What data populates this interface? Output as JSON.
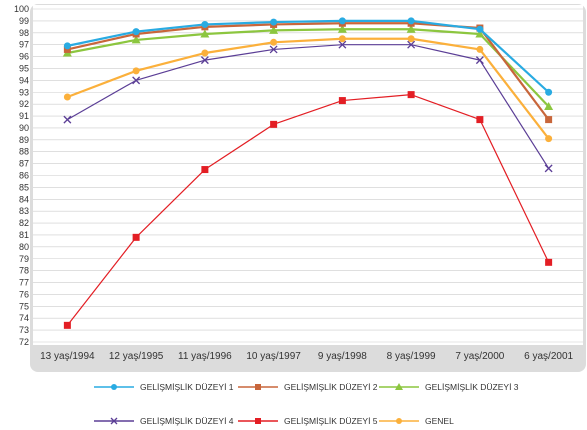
{
  "chart_data": {
    "type": "line",
    "title": "",
    "xlabel": "",
    "ylabel": "",
    "ylim": [
      72,
      100
    ],
    "y_ticks": [
      72,
      73,
      74,
      75,
      76,
      77,
      78,
      79,
      80,
      81,
      82,
      83,
      84,
      85,
      86,
      87,
      88,
      89,
      90,
      91,
      92,
      93,
      94,
      95,
      96,
      97,
      98,
      99,
      100
    ],
    "grid": "horizontal",
    "legend_position": "bottom",
    "categories": [
      "13 yaş/1994",
      "12 yaş/1995",
      "11 yaş/1996",
      "10 yaş/1997",
      "9 yaş/1998",
      "8 yaş/1999",
      "7 yaş/2000",
      "6 yaş/2001"
    ],
    "series": [
      {
        "name": "GELİŞMİŞLİK DÜZEYİ 1",
        "color": "#29abe2",
        "marker": "circle",
        "values": [
          96.9,
          98.1,
          98.7,
          98.9,
          99.0,
          99.0,
          98.3,
          93.0
        ]
      },
      {
        "name": "GELİŞMİŞLİK DÜZEYİ 2",
        "color": "#c8663b",
        "marker": "square",
        "values": [
          96.6,
          97.9,
          98.5,
          98.7,
          98.8,
          98.8,
          98.4,
          90.7
        ]
      },
      {
        "name": "GELİŞMİŞLİK DÜZEYİ 3",
        "color": "#8cc63f",
        "marker": "triangle",
        "values": [
          96.3,
          97.4,
          97.9,
          98.2,
          98.3,
          98.3,
          97.9,
          91.8
        ]
      },
      {
        "name": "GELİŞMİŞLİK DÜZEYİ 4",
        "color": "#5b3e96",
        "marker": "x",
        "values": [
          90.7,
          94.0,
          95.7,
          96.6,
          97.0,
          97.0,
          95.7,
          86.6
        ]
      },
      {
        "name": "GELİŞMİŞLİK DÜZEYİ 5",
        "color": "#e31e24",
        "marker": "square",
        "values": [
          73.4,
          80.8,
          86.5,
          90.3,
          92.3,
          92.8,
          90.7,
          78.7
        ]
      },
      {
        "name": "GENEL",
        "color": "#fbb03b",
        "marker": "circle",
        "values": [
          92.6,
          94.8,
          96.3,
          97.2,
          97.5,
          97.5,
          96.6,
          89.1
        ]
      }
    ],
    "colors": {
      "plot_background": "#ffffff",
      "frame_background": "#dcdcdc",
      "grid": "#cccccc"
    }
  }
}
